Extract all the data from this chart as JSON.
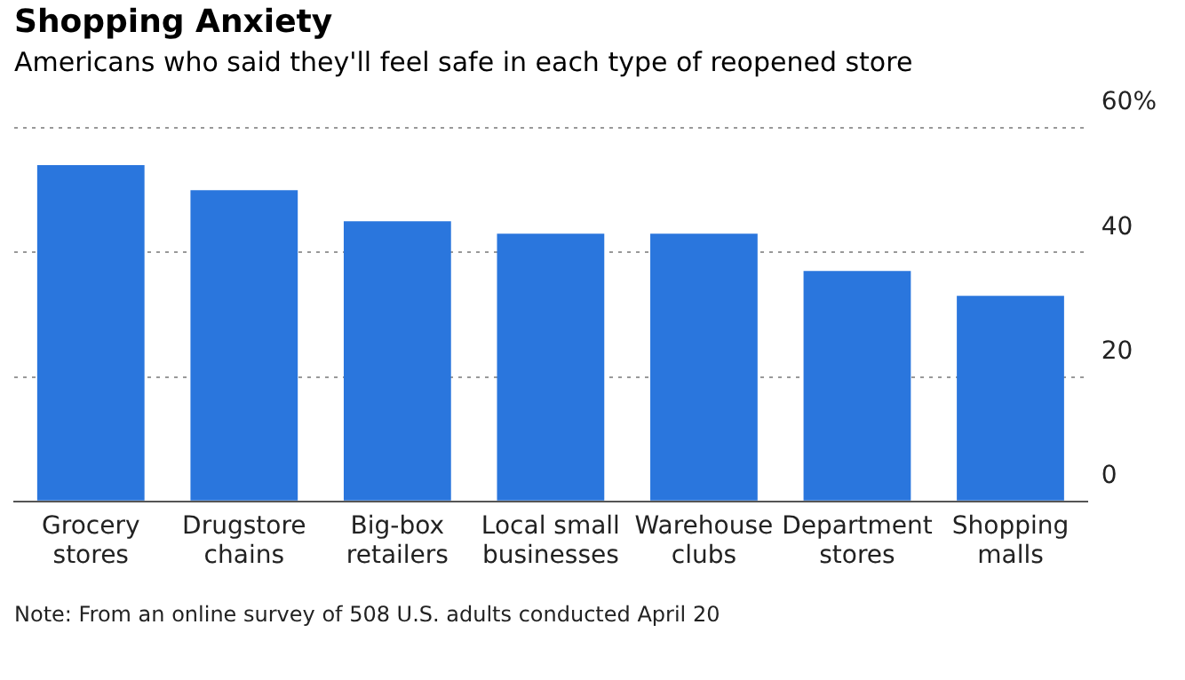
{
  "chart_data": {
    "type": "bar",
    "title": "Shopping Anxiety",
    "subtitle": "Americans who said they'll feel safe in each type of reopened store",
    "categories": [
      "Grocery stores",
      "Drugstore chains",
      "Big-box retailers",
      "Local small businesses",
      "Warehouse clubs",
      "Department stores",
      "Shopping malls"
    ],
    "values": [
      54,
      50,
      45,
      43,
      43,
      37,
      33
    ],
    "color": "#2a76dd",
    "ylim": [
      0,
      60
    ],
    "yticks": [
      0,
      20,
      40,
      {
        "value": 60,
        "label": "60%"
      }
    ],
    "grid": "y",
    "annotations": [
      "Note: From an online survey of 508 U.S. adults conducted April 20"
    ]
  }
}
